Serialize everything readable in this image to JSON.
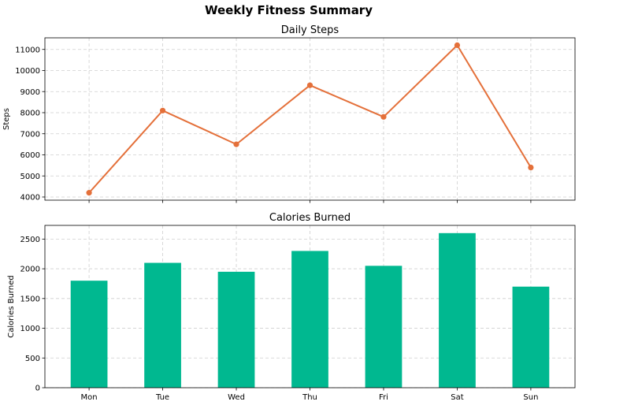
{
  "figure": {
    "title": "Weekly Fitness Summary"
  },
  "chart_data": [
    {
      "type": "line",
      "title": "Daily Steps",
      "xlabel": "",
      "ylabel": "Steps",
      "categories": [
        "Mon",
        "Tue",
        "Wed",
        "Thu",
        "Fri",
        "Sat",
        "Sun"
      ],
      "values": [
        4200,
        8100,
        6500,
        9300,
        7800,
        11200,
        5400
      ],
      "ylim": [
        3850,
        11550
      ],
      "yticks": [
        4000,
        5000,
        6000,
        7000,
        8000,
        9000,
        10000,
        11000
      ],
      "show_x_ticklabels": false,
      "grid": true,
      "color": "#e4703a"
    },
    {
      "type": "bar",
      "title": "Calories Burned",
      "xlabel": "",
      "ylabel": "Calories Burned",
      "categories": [
        "Mon",
        "Tue",
        "Wed",
        "Thu",
        "Fri",
        "Sat",
        "Sun"
      ],
      "values": [
        1800,
        2100,
        1950,
        2300,
        2050,
        2600,
        1700
      ],
      "ylim": [
        0,
        2730
      ],
      "yticks": [
        0,
        500,
        1000,
        1500,
        2000,
        2500
      ],
      "show_x_ticklabels": true,
      "grid": true,
      "color": "#00b890"
    }
  ]
}
